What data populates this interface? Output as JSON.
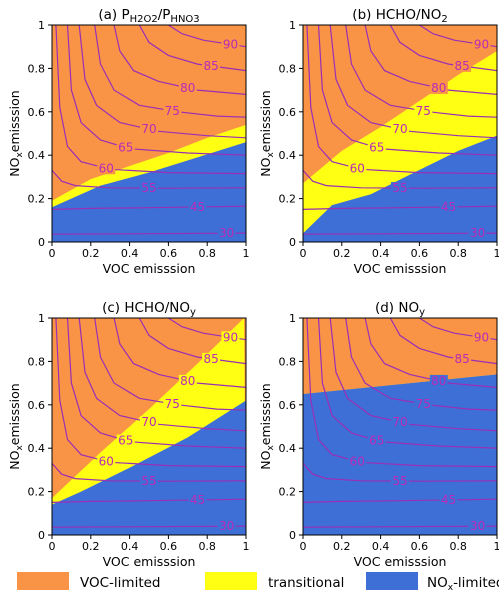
{
  "colors": {
    "voc_limited": "#f99446",
    "transitional": "#ffff14",
    "nox_limited": "#3e6fd6",
    "contour": "#9a2fb5",
    "contour_label": "#bb2ab8"
  },
  "legend": [
    {
      "key": "voc_limited",
      "label": "VOC-limited"
    },
    {
      "key": "transitional",
      "label": "transitional"
    },
    {
      "key": "nox_limited",
      "label_main": "NO",
      "label_sub": "x",
      "label_tail": "-limited"
    }
  ],
  "chart_data": [
    {
      "type": "contour",
      "panel": "a",
      "title_parts": [
        {
          "t": "(a) P"
        },
        {
          "t": "H2O2",
          "sub": true
        },
        {
          "t": "/P"
        },
        {
          "t": "HNO3",
          "sub": true
        }
      ],
      "xlabel": "VOC emisssion",
      "ylabel_main": "NO",
      "ylabel_sub": "x",
      "ylabel_tail": "emisssion",
      "xlim": [
        0,
        1
      ],
      "ylim": [
        0,
        1
      ],
      "xticks": [
        "0",
        "0.2",
        "0.4",
        "0.6",
        "0.8",
        "1"
      ],
      "yticks": [
        "0",
        "0.2",
        "0.4",
        "0.6",
        "0.8",
        "1"
      ],
      "regions": {
        "lower_boundary": [
          [
            0,
            0.16
          ],
          [
            0.25,
            0.26
          ],
          [
            0.5,
            0.32
          ],
          [
            0.75,
            0.39
          ],
          [
            1,
            0.46
          ]
        ],
        "upper_boundary": [
          [
            0,
            0.19
          ],
          [
            0.2,
            0.29
          ],
          [
            0.4,
            0.35
          ],
          [
            0.6,
            0.41
          ],
          [
            0.8,
            0.48
          ],
          [
            1,
            0.54
          ]
        ]
      },
      "contour_levels": [
        30,
        45,
        55,
        60,
        65,
        70,
        75,
        80,
        85,
        90
      ]
    },
    {
      "type": "contour",
      "panel": "b",
      "title_parts": [
        {
          "t": "(b) HCHO/NO"
        },
        {
          "t": "2",
          "sub": true
        }
      ],
      "xlabel": "VOC emisssion",
      "ylabel_main": "NO",
      "ylabel_sub": "x",
      "ylabel_tail": "emisssion",
      "xlim": [
        0,
        1
      ],
      "ylim": [
        0,
        1
      ],
      "xticks": [
        "0",
        "0.2",
        "0.4",
        "0.6",
        "0.8",
        "1"
      ],
      "yticks": [
        "0",
        "0.2",
        "0.4",
        "0.6",
        "0.8",
        "1"
      ],
      "regions": {
        "lower_boundary": [
          [
            0,
            0.04
          ],
          [
            0.15,
            0.17
          ],
          [
            0.35,
            0.22
          ],
          [
            0.55,
            0.31
          ],
          [
            0.8,
            0.42
          ],
          [
            1,
            0.49
          ]
        ],
        "upper_boundary": [
          [
            0,
            0.27
          ],
          [
            0.2,
            0.42
          ],
          [
            0.4,
            0.53
          ],
          [
            0.6,
            0.65
          ],
          [
            0.8,
            0.77
          ],
          [
            1,
            0.88
          ]
        ]
      },
      "contour_levels": [
        30,
        45,
        55,
        60,
        65,
        70,
        75,
        80,
        85,
        90
      ]
    },
    {
      "type": "contour",
      "panel": "c",
      "title_parts": [
        {
          "t": "(c) HCHO/NO"
        },
        {
          "t": "y",
          "sub": true
        }
      ],
      "xlabel": "VOC emisssion",
      "ylabel_main": "NO",
      "ylabel_sub": "x",
      "ylabel_tail": "emisssion",
      "xlim": [
        0,
        1
      ],
      "ylim": [
        0,
        1
      ],
      "xticks": [
        "0",
        "0.2",
        "0.4",
        "0.6",
        "0.8",
        "1"
      ],
      "yticks": [
        "0",
        "0.2",
        "0.4",
        "0.6",
        "0.8",
        "1"
      ],
      "regions": {
        "lower_boundary": [
          [
            0,
            0.14
          ],
          [
            0.15,
            0.2
          ],
          [
            0.4,
            0.31
          ],
          [
            0.7,
            0.45
          ],
          [
            1,
            0.62
          ]
        ],
        "upper_boundary": [
          [
            0,
            0.17
          ],
          [
            0.25,
            0.38
          ],
          [
            0.5,
            0.58
          ],
          [
            0.75,
            0.79
          ],
          [
            0.99,
            1
          ]
        ]
      },
      "contour_levels": [
        30,
        45,
        55,
        60,
        65,
        70,
        75,
        80,
        85,
        90
      ]
    },
    {
      "type": "contour",
      "panel": "d",
      "title_parts": [
        {
          "t": "(d) NO"
        },
        {
          "t": "y",
          "sub": true
        }
      ],
      "xlabel": "VOC emisssion",
      "ylabel_main": "NO",
      "ylabel_sub": "x",
      "ylabel_tail": "emisssion",
      "xlim": [
        0,
        1
      ],
      "ylim": [
        0,
        1
      ],
      "xticks": [
        "0",
        "0.2",
        "0.4",
        "0.6",
        "0.8",
        "1"
      ],
      "yticks": [
        "0",
        "0.2",
        "0.4",
        "0.6",
        "0.8",
        "1"
      ],
      "regions": {
        "lower_boundary": [
          [
            0,
            0.65
          ],
          [
            1,
            0.74
          ]
        ],
        "upper_boundary": [
          [
            0,
            0.65
          ],
          [
            1,
            0.74
          ]
        ]
      },
      "contour_levels": [
        30,
        45,
        55,
        60,
        65,
        70,
        75,
        80,
        85,
        90
      ]
    }
  ],
  "contour_lines": [
    {
      "level": 30,
      "label": "30",
      "pts": [
        [
          0,
          0.036
        ],
        [
          0.4,
          0.038
        ],
        [
          0.8,
          0.04
        ],
        [
          1,
          0.041
        ]
      ],
      "lx": 0.9
    },
    {
      "level": 45,
      "label": "45",
      "pts": [
        [
          0,
          0.15
        ],
        [
          0.2,
          0.155
        ],
        [
          0.5,
          0.158
        ],
        [
          0.8,
          0.162
        ],
        [
          1,
          0.165
        ]
      ],
      "lx": 0.75
    },
    {
      "level": 55,
      "label": "55",
      "pts": [
        [
          0,
          0.33
        ],
        [
          0.05,
          0.28
        ],
        [
          0.12,
          0.26
        ],
        [
          0.3,
          0.25
        ],
        [
          0.6,
          0.248
        ],
        [
          1,
          0.25
        ]
      ],
      "lx": 0.5
    },
    {
      "level": 60,
      "label": "60",
      "pts": [
        [
          0.02,
          1
        ],
        [
          0.04,
          0.62
        ],
        [
          0.08,
          0.44
        ],
        [
          0.15,
          0.37
        ],
        [
          0.3,
          0.335
        ],
        [
          0.6,
          0.32
        ],
        [
          1,
          0.315
        ]
      ],
      "lx": 0.28
    },
    {
      "level": 65,
      "label": "65",
      "pts": [
        [
          0.08,
          1
        ],
        [
          0.1,
          0.7
        ],
        [
          0.15,
          0.55
        ],
        [
          0.25,
          0.47
        ],
        [
          0.4,
          0.43
        ],
        [
          0.7,
          0.41
        ],
        [
          1,
          0.4
        ]
      ],
      "lx": 0.38
    },
    {
      "level": 70,
      "label": "70",
      "pts": [
        [
          0.14,
          1
        ],
        [
          0.17,
          0.75
        ],
        [
          0.23,
          0.63
        ],
        [
          0.35,
          0.55
        ],
        [
          0.55,
          0.51
        ],
        [
          0.8,
          0.49
        ],
        [
          1,
          0.48
        ]
      ],
      "lx": 0.5
    },
    {
      "level": 75,
      "label": "75",
      "pts": [
        [
          0.22,
          1
        ],
        [
          0.25,
          0.82
        ],
        [
          0.32,
          0.7
        ],
        [
          0.45,
          0.63
        ],
        [
          0.65,
          0.6
        ],
        [
          0.85,
          0.58
        ],
        [
          1,
          0.575
        ]
      ],
      "lx": 0.62
    },
    {
      "level": 80,
      "label": "80",
      "pts": [
        [
          0.32,
          1
        ],
        [
          0.35,
          0.88
        ],
        [
          0.42,
          0.79
        ],
        [
          0.55,
          0.74
        ],
        [
          0.75,
          0.7
        ],
        [
          1,
          0.68
        ]
      ],
      "lx": 0.7
    },
    {
      "level": 85,
      "label": "85",
      "pts": [
        [
          0.45,
          1
        ],
        [
          0.5,
          0.92
        ],
        [
          0.6,
          0.86
        ],
        [
          0.75,
          0.82
        ],
        [
          1,
          0.79
        ]
      ],
      "lx": 0.82
    },
    {
      "level": 90,
      "label": "90",
      "pts": [
        [
          0.6,
          1
        ],
        [
          0.67,
          0.96
        ],
        [
          0.78,
          0.93
        ],
        [
          1,
          0.9
        ]
      ],
      "lx": 0.92
    }
  ]
}
